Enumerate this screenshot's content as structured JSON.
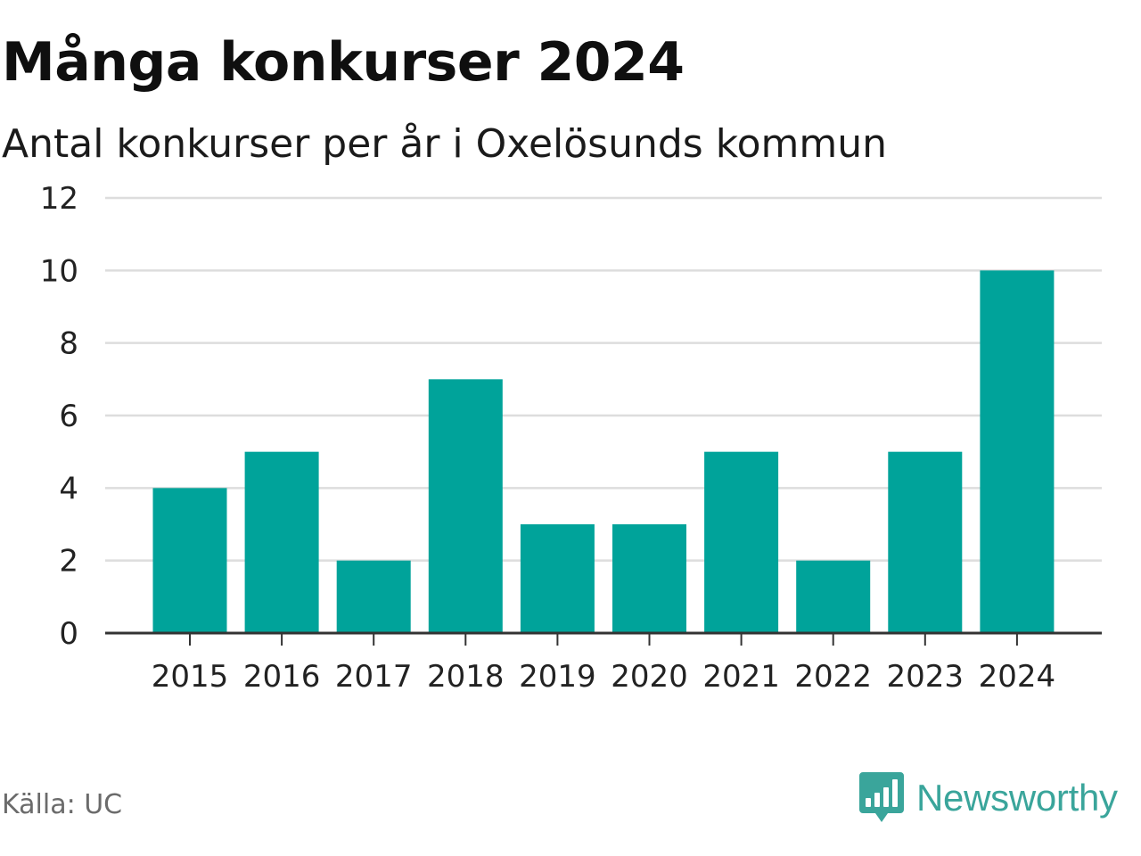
{
  "title": "Många konkurser 2024",
  "subtitle": "Antal konkurser per år i Oxelösunds kommun",
  "source": "Källa: UC",
  "brand": {
    "name": "Newsworthy",
    "icon": "bar-chart-speech-bubble-icon"
  },
  "colors": {
    "bar": "#00a39a",
    "grid": "#dddddd",
    "axis": "#333333",
    "brand": "#3aa59b"
  },
  "chart_data": {
    "type": "bar",
    "categories": [
      "2015",
      "2016",
      "2017",
      "2018",
      "2019",
      "2020",
      "2021",
      "2022",
      "2023",
      "2024"
    ],
    "values": [
      4,
      5,
      2,
      7,
      3,
      3,
      5,
      2,
      5,
      10
    ],
    "ylim": [
      0,
      12
    ],
    "yticks": [
      0,
      2,
      4,
      6,
      8,
      10,
      12
    ],
    "xlabel": "",
    "ylabel": "",
    "grid": true,
    "legend": "none"
  }
}
